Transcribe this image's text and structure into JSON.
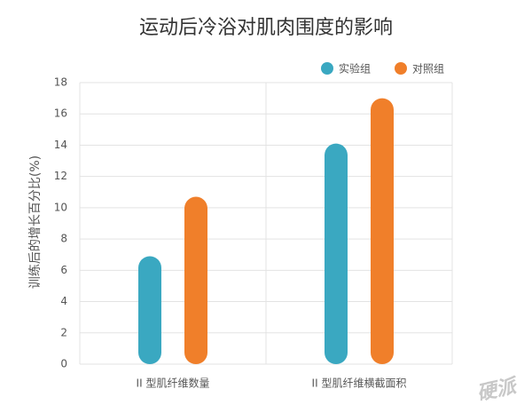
{
  "chart_data": {
    "type": "bar",
    "title": "运动后冷浴对肌肉围度的影响",
    "y_label": "训练后的增长百分比(%)",
    "categories": [
      "II 型肌纤维数量",
      "II 型肌纤维横截面积"
    ],
    "series": [
      {
        "name": "实验组",
        "color": "#3aa8c1",
        "values": [
          6.9,
          14.1
        ]
      },
      {
        "name": "对照组",
        "color": "#f07f2a",
        "values": [
          10.7,
          17.0
        ]
      }
    ],
    "ylim": [
      0,
      18
    ],
    "yticks": [
      0,
      2,
      4,
      6,
      8,
      10,
      12,
      14,
      16,
      18
    ],
    "grid": true,
    "legend": "top-right",
    "watermark": "硬派"
  }
}
